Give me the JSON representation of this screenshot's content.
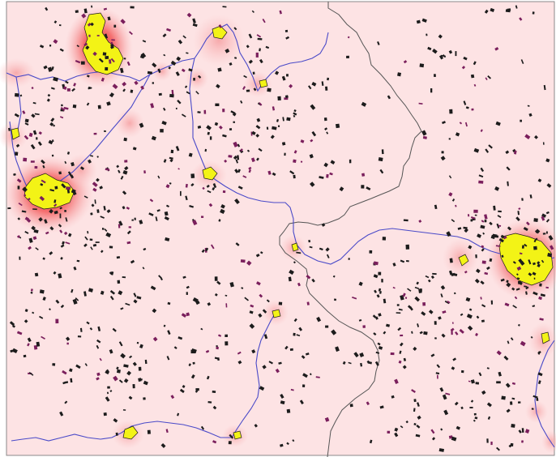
{
  "map": {
    "colors": {
      "background": "#fde3e4",
      "halo_outer": "#f9b6b8",
      "halo_inner": "#ee3a3a",
      "urban_fill": "#f3f316",
      "urban_outline": "#1a1a1a",
      "small_settlement": "#1c1c1c",
      "small_settlement_alt": "#7a1f5c",
      "river": "#4a4ac8",
      "boundary": "#555555",
      "border_frame": "#8a8a8a"
    },
    "layers": [
      "density-halo",
      "urban-areas",
      "small-settlements",
      "rivers",
      "admin-boundaries"
    ]
  }
}
